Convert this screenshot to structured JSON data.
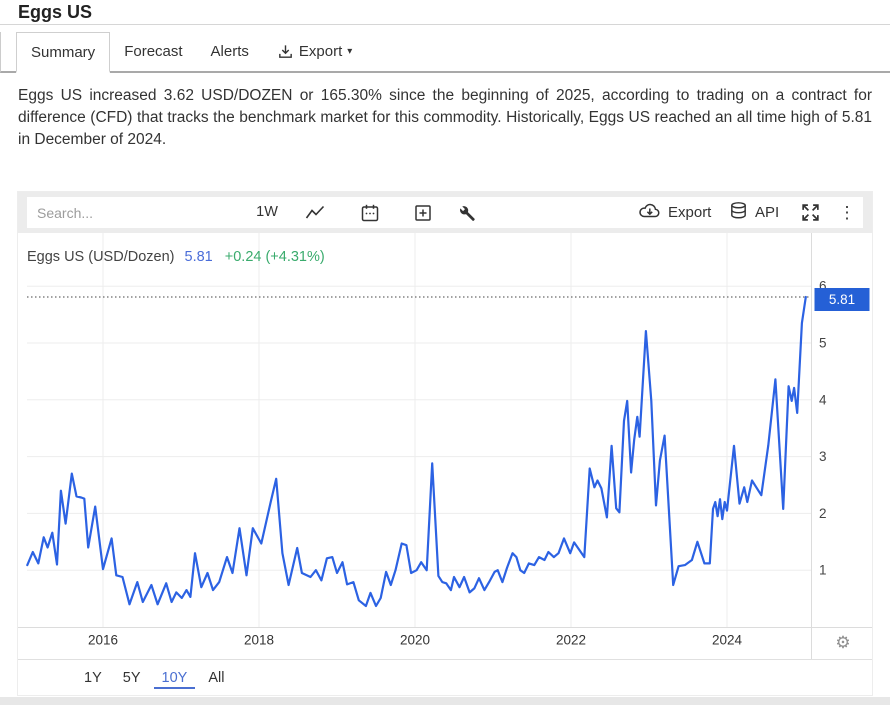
{
  "page": {
    "title": "Eggs US",
    "tabs": [
      {
        "label": "Summary",
        "active": true
      },
      {
        "label": "Forecast",
        "active": false
      },
      {
        "label": "Alerts",
        "active": false
      },
      {
        "label": "Export",
        "active": false,
        "icon": "download-icon",
        "has_caret": true
      }
    ],
    "description": "Eggs US increased 3.62 USD/DOZEN or 165.30% since the beginning of 2025, according to trading on a contract for difference (CFD) that tracks the benchmark market for this commodity. Historically, Eggs US reached an all time high of 5.81 in December of 2024."
  },
  "chart_widget": {
    "toolbar": {
      "search_placeholder": "Search...",
      "interval_label": "1W",
      "icons": [
        "line-chart-icon",
        "calendar-icon",
        "compare-add-icon",
        "tools-icon"
      ],
      "export_label": "Export",
      "api_label": "API"
    },
    "legend": {
      "series_label": "Eggs US (USD/Dozen)",
      "price": "5.81",
      "change": "+0.24 (+4.31%)"
    },
    "price_marker": {
      "value": "5.81"
    },
    "range_buttons": [
      {
        "label": "1Y",
        "active": false
      },
      {
        "label": "5Y",
        "active": false
      },
      {
        "label": "10Y",
        "active": true
      },
      {
        "label": "All",
        "active": false
      }
    ]
  },
  "colors": {
    "line": "#2c62e3",
    "marker_bg": "#2560d6",
    "legend_price": "#4a6dd9",
    "legend_change": "#3aab6d",
    "active_range": "#4a6fd1",
    "grid": "#ededed",
    "axis": "#dcdcdc",
    "dotted": "#444444"
  },
  "chart_data": {
    "type": "line",
    "title": "Eggs US (USD/Dozen)",
    "unit": "USD/Dozen",
    "last_price": 5.81,
    "change_abs": 0.24,
    "change_pct": 4.31,
    "xlim": [
      2015.0,
      2025.1
    ],
    "ylim": [
      0,
      6.95
    ],
    "x_ticks": [
      2016,
      2018,
      2020,
      2022,
      2024
    ],
    "y_ticks": [
      1,
      2,
      3,
      4,
      5,
      6
    ],
    "grid": true,
    "legend_position": "top-left",
    "points": [
      [
        2015.03,
        1.09
      ],
      [
        2015.1,
        1.32
      ],
      [
        2015.17,
        1.12
      ],
      [
        2015.24,
        1.58
      ],
      [
        2015.29,
        1.4
      ],
      [
        2015.35,
        1.66
      ],
      [
        2015.41,
        1.1
      ],
      [
        2015.46,
        2.4
      ],
      [
        2015.52,
        1.82
      ],
      [
        2015.6,
        2.7
      ],
      [
        2015.66,
        2.3
      ],
      [
        2015.72,
        2.28
      ],
      [
        2015.76,
        2.26
      ],
      [
        2015.81,
        1.4
      ],
      [
        2015.9,
        2.12
      ],
      [
        2016.0,
        1.02
      ],
      [
        2016.11,
        1.56
      ],
      [
        2016.17,
        0.91
      ],
      [
        2016.25,
        0.88
      ],
      [
        2016.34,
        0.4
      ],
      [
        2016.44,
        0.79
      ],
      [
        2016.51,
        0.44
      ],
      [
        2016.62,
        0.74
      ],
      [
        2016.7,
        0.4
      ],
      [
        2016.81,
        0.77
      ],
      [
        2016.88,
        0.44
      ],
      [
        2016.94,
        0.61
      ],
      [
        2017.01,
        0.51
      ],
      [
        2017.07,
        0.65
      ],
      [
        2017.12,
        0.53
      ],
      [
        2017.18,
        1.3
      ],
      [
        2017.26,
        0.7
      ],
      [
        2017.34,
        0.95
      ],
      [
        2017.41,
        0.65
      ],
      [
        2017.49,
        0.79
      ],
      [
        2017.59,
        1.23
      ],
      [
        2017.66,
        0.95
      ],
      [
        2017.75,
        1.74
      ],
      [
        2017.84,
        0.91
      ],
      [
        2017.92,
        1.74
      ],
      [
        2018.03,
        1.47
      ],
      [
        2018.15,
        2.2
      ],
      [
        2018.22,
        2.61
      ],
      [
        2018.3,
        1.3
      ],
      [
        2018.38,
        0.74
      ],
      [
        2018.49,
        1.39
      ],
      [
        2018.55,
        0.95
      ],
      [
        2018.66,
        0.88
      ],
      [
        2018.73,
        1.0
      ],
      [
        2018.8,
        0.82
      ],
      [
        2018.87,
        1.21
      ],
      [
        2018.94,
        1.23
      ],
      [
        2019.0,
        0.95
      ],
      [
        2019.07,
        1.14
      ],
      [
        2019.13,
        0.75
      ],
      [
        2019.21,
        0.79
      ],
      [
        2019.28,
        0.47
      ],
      [
        2019.37,
        0.37
      ],
      [
        2019.43,
        0.6
      ],
      [
        2019.5,
        0.37
      ],
      [
        2019.56,
        0.51
      ],
      [
        2019.63,
        0.97
      ],
      [
        2019.69,
        0.74
      ],
      [
        2019.75,
        1.0
      ],
      [
        2019.83,
        1.47
      ],
      [
        2019.89,
        1.44
      ],
      [
        2019.95,
        0.95
      ],
      [
        2020.02,
        1.0
      ],
      [
        2020.08,
        1.14
      ],
      [
        2020.15,
        1.0
      ],
      [
        2020.22,
        2.88
      ],
      [
        2020.3,
        0.9
      ],
      [
        2020.35,
        0.79
      ],
      [
        2020.4,
        0.77
      ],
      [
        2020.46,
        0.65
      ],
      [
        2020.5,
        0.88
      ],
      [
        2020.57,
        0.7
      ],
      [
        2020.63,
        0.88
      ],
      [
        2020.7,
        0.61
      ],
      [
        2020.76,
        0.68
      ],
      [
        2020.82,
        0.86
      ],
      [
        2020.89,
        0.65
      ],
      [
        2020.95,
        0.79
      ],
      [
        2021.02,
        0.97
      ],
      [
        2021.06,
        1.0
      ],
      [
        2021.12,
        0.79
      ],
      [
        2021.18,
        1.04
      ],
      [
        2021.25,
        1.3
      ],
      [
        2021.3,
        1.23
      ],
      [
        2021.35,
        1.0
      ],
      [
        2021.4,
        0.95
      ],
      [
        2021.46,
        1.12
      ],
      [
        2021.53,
        1.09
      ],
      [
        2021.59,
        1.23
      ],
      [
        2021.66,
        1.18
      ],
      [
        2021.71,
        1.32
      ],
      [
        2021.78,
        1.23
      ],
      [
        2021.84,
        1.3
      ],
      [
        2021.91,
        1.56
      ],
      [
        2021.99,
        1.3
      ],
      [
        2022.04,
        1.49
      ],
      [
        2022.09,
        1.39
      ],
      [
        2022.17,
        1.23
      ],
      [
        2022.24,
        2.79
      ],
      [
        2022.3,
        2.46
      ],
      [
        2022.34,
        2.58
      ],
      [
        2022.39,
        2.44
      ],
      [
        2022.46,
        1.93
      ],
      [
        2022.52,
        3.19
      ],
      [
        2022.58,
        2.09
      ],
      [
        2022.62,
        2.02
      ],
      [
        2022.68,
        3.63
      ],
      [
        2022.72,
        3.98
      ],
      [
        2022.77,
        2.72
      ],
      [
        2022.81,
        3.3
      ],
      [
        2022.85,
        3.7
      ],
      [
        2022.88,
        3.35
      ],
      [
        2022.96,
        5.21
      ],
      [
        2023.03,
        3.98
      ],
      [
        2023.09,
        2.14
      ],
      [
        2023.14,
        2.93
      ],
      [
        2023.2,
        3.37
      ],
      [
        2023.31,
        0.74
      ],
      [
        2023.38,
        1.07
      ],
      [
        2023.46,
        1.09
      ],
      [
        2023.55,
        1.18
      ],
      [
        2023.62,
        1.5
      ],
      [
        2023.71,
        1.12
      ],
      [
        2023.78,
        1.12
      ],
      [
        2023.82,
        2.08
      ],
      [
        2023.85,
        2.2
      ],
      [
        2023.88,
        1.95
      ],
      [
        2023.91,
        2.25
      ],
      [
        2023.94,
        1.9
      ],
      [
        2023.97,
        2.2
      ],
      [
        2024.0,
        2.05
      ],
      [
        2024.09,
        3.19
      ],
      [
        2024.16,
        2.17
      ],
      [
        2024.22,
        2.46
      ],
      [
        2024.26,
        2.2
      ],
      [
        2024.32,
        2.58
      ],
      [
        2024.38,
        2.45
      ],
      [
        2024.44,
        2.32
      ],
      [
        2024.53,
        3.2
      ],
      [
        2024.62,
        4.36
      ],
      [
        2024.72,
        2.08
      ],
      [
        2024.79,
        4.24
      ],
      [
        2024.83,
        3.98
      ],
      [
        2024.86,
        4.21
      ],
      [
        2024.9,
        3.77
      ],
      [
        2024.96,
        5.35
      ],
      [
        2025.01,
        5.81
      ]
    ]
  }
}
